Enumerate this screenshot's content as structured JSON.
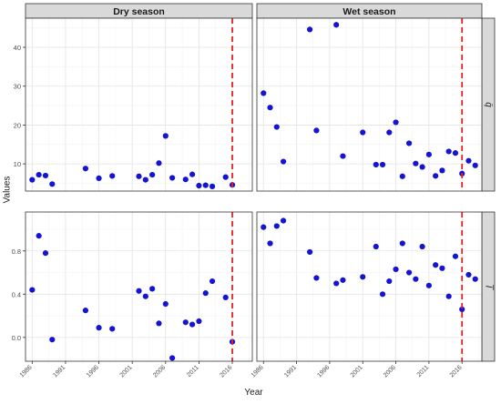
{
  "chart_data": {
    "type": "scatter",
    "xlabel": "Year",
    "ylabel": "Values",
    "colors": {
      "points": "#1414d2",
      "reference_line": "#e02424",
      "strip_bg": "#d9d9d9"
    },
    "reference_line": {
      "x": 2016.0,
      "style": "dashed"
    },
    "grid": true,
    "columns": [
      "Dry season",
      "Wet season"
    ],
    "rows": [
      "q̄",
      "I̅"
    ],
    "x_axis": {
      "range": [
        1985,
        2019
      ],
      "ticks": [
        1986,
        1991,
        1996,
        2001,
        2006,
        2011,
        2016
      ],
      "tick_labels": [
        "1986",
        "1991",
        "1996",
        "2001",
        "2006",
        "2011",
        "2016"
      ]
    },
    "y_axes": [
      {
        "row": "q̄",
        "range": [
          3.0,
          47.5
        ],
        "ticks": [
          10,
          20,
          30,
          40
        ],
        "tick_labels": [
          "10",
          "20",
          "30",
          "40"
        ]
      },
      {
        "row": "I̅",
        "range": [
          -0.22,
          1.16
        ],
        "ticks": [
          0.0,
          0.4,
          0.8
        ],
        "tick_labels": [
          "0.0",
          "0.4",
          "0.8"
        ]
      }
    ],
    "panels": [
      {
        "column": "Dry season",
        "row": "q̄",
        "x": [
          1986,
          1987,
          1988,
          1989,
          1994,
          1996,
          1998,
          2002,
          2003,
          2004,
          2005,
          2006,
          2007,
          2009,
          2010,
          2011,
          2012,
          2013,
          2015,
          2016
        ],
        "y": [
          5.9,
          7.2,
          7.0,
          4.8,
          8.8,
          6.3,
          6.9,
          6.8,
          5.9,
          7.2,
          10.2,
          17.2,
          6.4,
          6.0,
          7.3,
          4.4,
          4.5,
          4.2,
          6.6,
          4.6
        ]
      },
      {
        "column": "Wet season",
        "row": "q̄",
        "x": [
          1986,
          1987,
          1988,
          1989,
          1993,
          1994,
          1997,
          1998,
          2001,
          2003,
          2004,
          2005,
          2006,
          2007,
          2008,
          2009,
          2010,
          2011,
          2012,
          2013,
          2014,
          2015,
          2016,
          2017,
          2018
        ],
        "y": [
          28.2,
          24.5,
          19.5,
          10.6,
          44.6,
          18.6,
          45.8,
          12.0,
          18.1,
          9.8,
          9.8,
          18.1,
          20.7,
          6.8,
          15.3,
          10.1,
          9.2,
          12.4,
          6.9,
          8.3,
          13.2,
          12.8,
          7.5,
          10.8,
          9.6
        ]
      },
      {
        "column": "Dry season",
        "row": "I̅",
        "x": [
          1986,
          1987,
          1988,
          1989,
          1994,
          1996,
          1998,
          2002,
          2003,
          2004,
          2005,
          2006,
          2007,
          2009,
          2010,
          2011,
          2012,
          2013,
          2015,
          2016
        ],
        "y": [
          0.44,
          0.94,
          0.78,
          -0.02,
          0.25,
          0.09,
          0.08,
          0.43,
          0.38,
          0.45,
          0.13,
          0.31,
          -0.19,
          0.14,
          0.12,
          0.15,
          0.41,
          0.52,
          0.37,
          -0.04
        ]
      },
      {
        "column": "Wet season",
        "row": "I̅",
        "x": [
          1986,
          1987,
          1988,
          1989,
          1993,
          1994,
          1997,
          1998,
          2001,
          2003,
          2004,
          2005,
          2006,
          2007,
          2008,
          2009,
          2010,
          2011,
          2012,
          2013,
          2014,
          2015,
          2016,
          2017,
          2018
        ],
        "y": [
          1.02,
          0.87,
          1.03,
          1.08,
          0.79,
          0.55,
          0.5,
          0.53,
          0.56,
          0.84,
          0.4,
          0.52,
          0.63,
          0.87,
          0.6,
          0.54,
          0.84,
          0.48,
          0.67,
          0.64,
          0.38,
          0.75,
          0.26,
          0.58,
          0.54
        ]
      }
    ]
  }
}
